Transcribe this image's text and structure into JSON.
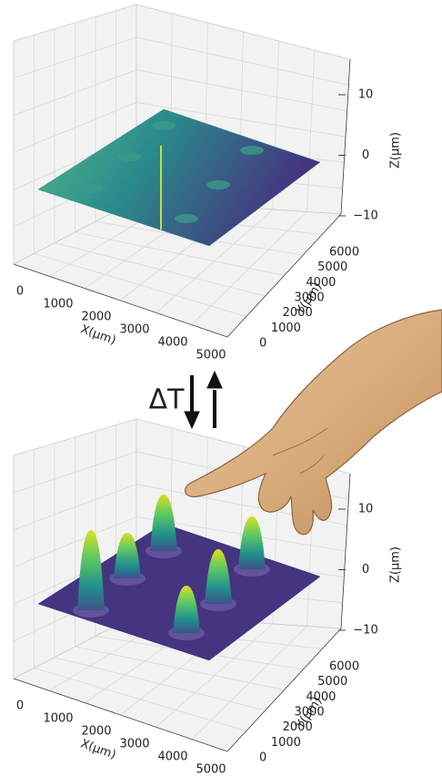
{
  "plots": [
    {
      "x_label": "X(μm)",
      "y_label": "Y(μm)",
      "z_label": "Z(μm)",
      "x_ticks": [
        "0",
        "1000",
        "2000",
        "3000",
        "4000",
        "5000"
      ],
      "y_ticks": [
        "0",
        "1000",
        "2000",
        "3000",
        "4000",
        "5000",
        "6000"
      ],
      "z_ticks": [
        "10",
        "0",
        "−10"
      ]
    },
    {
      "x_label": "X(μm)",
      "y_label": "Y(μm)",
      "z_label": "Z(μm)",
      "x_ticks": [
        "0",
        "1000",
        "2000",
        "3000",
        "4000",
        "5000"
      ],
      "y_ticks": [
        "0",
        "1000",
        "2000",
        "3000",
        "4000",
        "5000",
        "6000"
      ],
      "z_ticks": [
        "10",
        "0",
        "−10"
      ]
    }
  ],
  "transition_label": "ΔT"
}
